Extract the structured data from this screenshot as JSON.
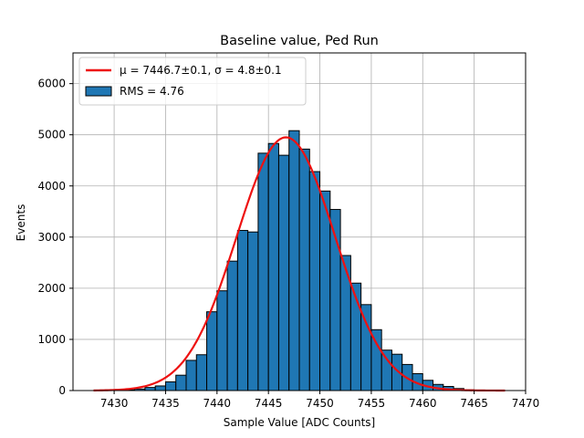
{
  "chart_data": {
    "type": "bar",
    "title": "Baseline value, Ped Run",
    "xlabel": "Sample Value [ADC Counts]",
    "ylabel": "Events",
    "xlim": [
      7426,
      7470
    ],
    "ylim": [
      0,
      6600
    ],
    "xticks": [
      7430,
      7435,
      7440,
      7445,
      7450,
      7455,
      7460,
      7465,
      7470
    ],
    "yticks": [
      0,
      1000,
      2000,
      3000,
      4000,
      5000,
      6000
    ],
    "grid": true,
    "legend_position": "top-left",
    "bin_width": 1,
    "series": [
      {
        "name": "RMS = 4.76",
        "type": "histogram",
        "color": "#1f77b4",
        "edgecolor": "#000000",
        "bins": [
          {
            "x": 7429,
            "count": 3
          },
          {
            "x": 7430,
            "count": 5
          },
          {
            "x": 7431,
            "count": 15
          },
          {
            "x": 7432,
            "count": 30
          },
          {
            "x": 7433,
            "count": 60
          },
          {
            "x": 7434,
            "count": 90
          },
          {
            "x": 7435,
            "count": 170
          },
          {
            "x": 7436,
            "count": 300
          },
          {
            "x": 7437,
            "count": 590
          },
          {
            "x": 7438,
            "count": 700
          },
          {
            "x": 7439,
            "count": 1540
          },
          {
            "x": 7440,
            "count": 1950
          },
          {
            "x": 7441,
            "count": 2530
          },
          {
            "x": 7442,
            "count": 3130
          },
          {
            "x": 7443,
            "count": 3100
          },
          {
            "x": 7444,
            "count": 4640
          },
          {
            "x": 7445,
            "count": 4830
          },
          {
            "x": 7446,
            "count": 4600
          },
          {
            "x": 7447,
            "count": 5080
          },
          {
            "x": 7448,
            "count": 4720
          },
          {
            "x": 7449,
            "count": 4280
          },
          {
            "x": 7450,
            "count": 3900
          },
          {
            "x": 7451,
            "count": 3540
          },
          {
            "x": 7452,
            "count": 2640
          },
          {
            "x": 7453,
            "count": 2100
          },
          {
            "x": 7454,
            "count": 1680
          },
          {
            "x": 7455,
            "count": 1190
          },
          {
            "x": 7456,
            "count": 790
          },
          {
            "x": 7457,
            "count": 710
          },
          {
            "x": 7458,
            "count": 510
          },
          {
            "x": 7459,
            "count": 330
          },
          {
            "x": 7460,
            "count": 200
          },
          {
            "x": 7461,
            "count": 120
          },
          {
            "x": 7462,
            "count": 80
          },
          {
            "x": 7463,
            "count": 40
          },
          {
            "x": 7464,
            "count": 15
          }
        ]
      },
      {
        "name": "μ = 7446.7±0.1, σ = 4.8±0.1",
        "type": "line",
        "color": "#ee1111",
        "model": "gaussian",
        "x_range": [
          7428,
          7468
        ],
        "amplitude": 4950,
        "mu": 7446.7,
        "sigma": 4.8
      }
    ]
  }
}
